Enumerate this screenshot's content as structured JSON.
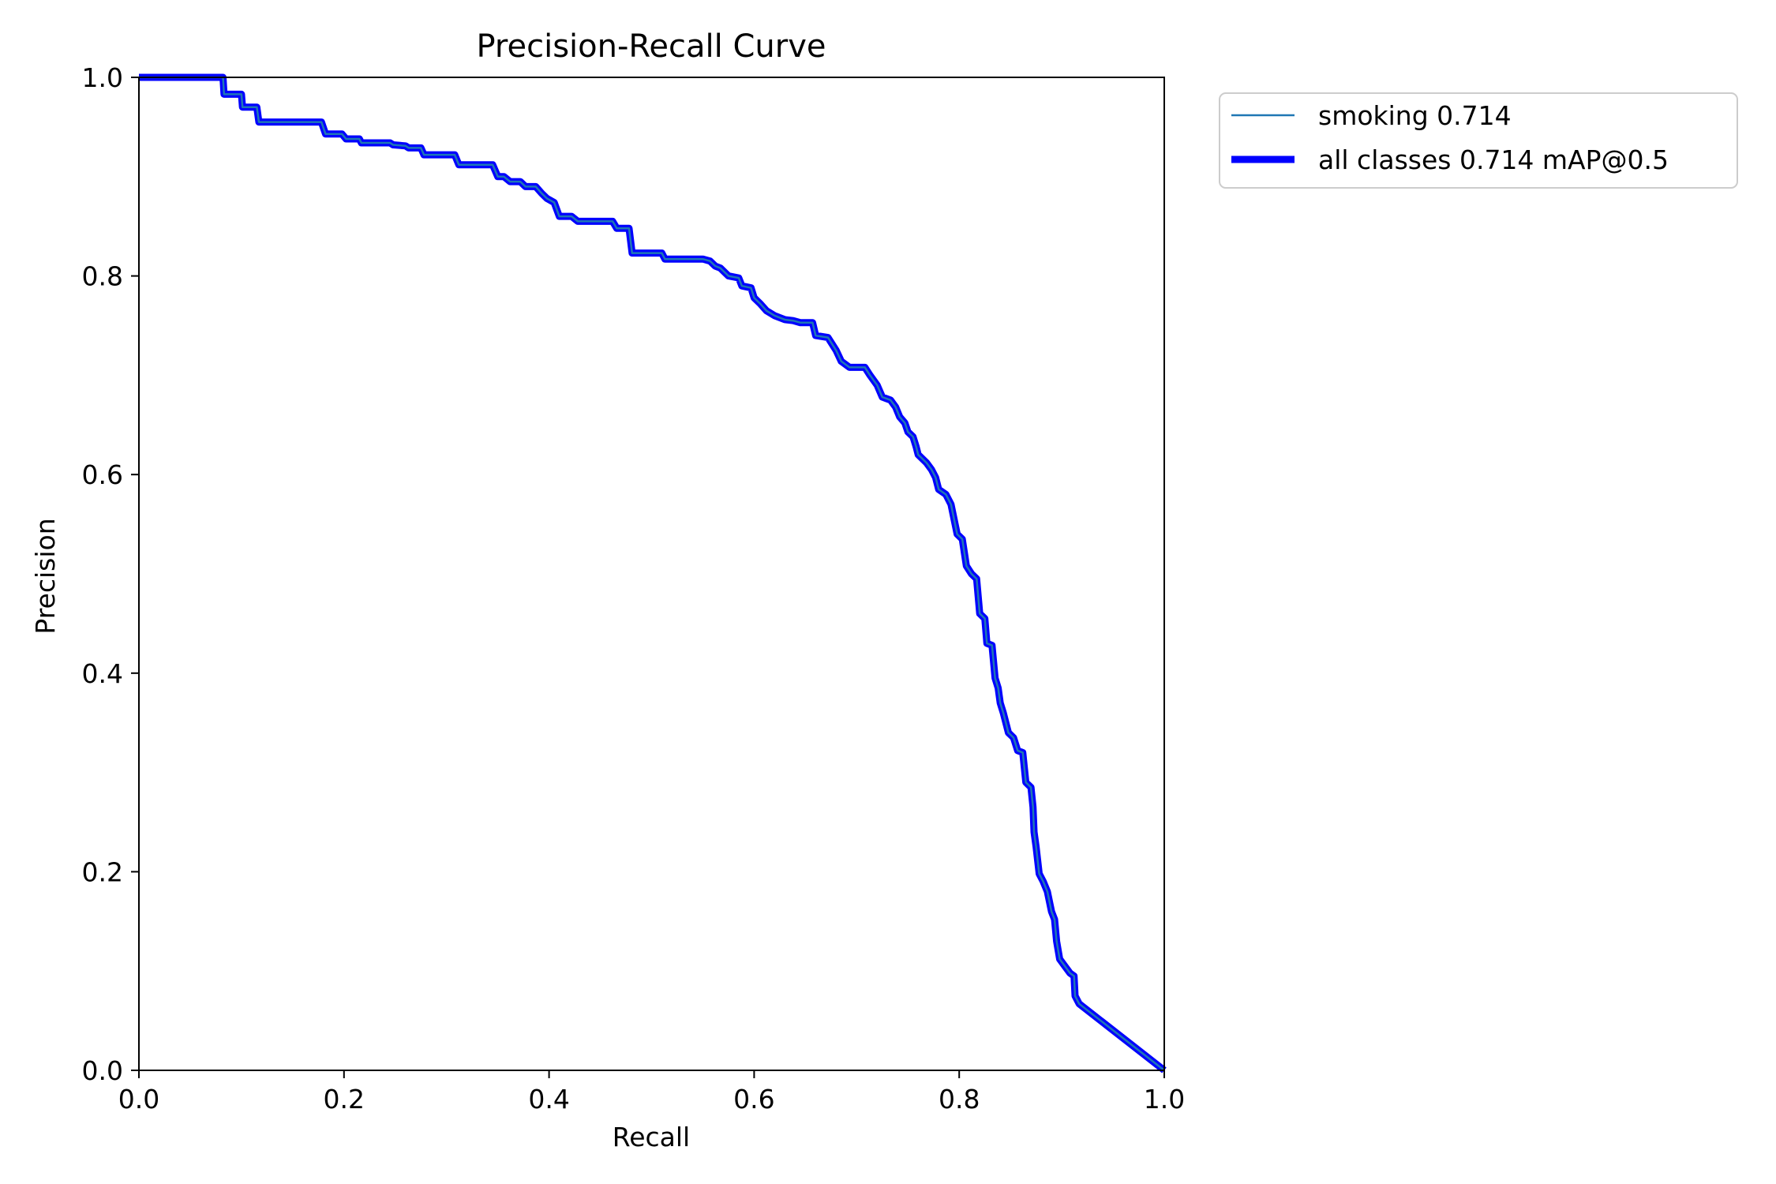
{
  "chart_data": {
    "type": "line",
    "title": "Precision-Recall Curve",
    "xlabel": "Recall",
    "ylabel": "Precision",
    "xlim": [
      0,
      1
    ],
    "ylim": [
      0,
      1
    ],
    "grid": false,
    "legend_placement": "outside-top-right",
    "x_ticks": [
      "0.0",
      "0.2",
      "0.4",
      "0.6",
      "0.8",
      "1.0"
    ],
    "y_ticks": [
      "0.0",
      "0.2",
      "0.4",
      "0.6",
      "0.8",
      "1.0"
    ],
    "series": [
      {
        "name": "smoking 0.714",
        "color": "#1f77b4",
        "points": [
          [
            0.0,
            1.0
          ],
          [
            0.082,
            1.0
          ],
          [
            0.083,
            0.983
          ],
          [
            0.1,
            0.983
          ],
          [
            0.101,
            0.97
          ],
          [
            0.115,
            0.97
          ],
          [
            0.117,
            0.955
          ],
          [
            0.178,
            0.955
          ],
          [
            0.182,
            0.943
          ],
          [
            0.198,
            0.943
          ],
          [
            0.202,
            0.938
          ],
          [
            0.215,
            0.938
          ],
          [
            0.217,
            0.934
          ],
          [
            0.245,
            0.934
          ],
          [
            0.248,
            0.932
          ],
          [
            0.26,
            0.931
          ],
          [
            0.263,
            0.929
          ],
          [
            0.275,
            0.929
          ],
          [
            0.278,
            0.922
          ],
          [
            0.308,
            0.922
          ],
          [
            0.312,
            0.912
          ],
          [
            0.345,
            0.912
          ],
          [
            0.35,
            0.9
          ],
          [
            0.356,
            0.9
          ],
          [
            0.362,
            0.895
          ],
          [
            0.372,
            0.895
          ],
          [
            0.377,
            0.89
          ],
          [
            0.387,
            0.89
          ],
          [
            0.393,
            0.883
          ],
          [
            0.398,
            0.878
          ],
          [
            0.405,
            0.874
          ],
          [
            0.41,
            0.86
          ],
          [
            0.422,
            0.86
          ],
          [
            0.428,
            0.855
          ],
          [
            0.462,
            0.855
          ],
          [
            0.466,
            0.848
          ],
          [
            0.478,
            0.848
          ],
          [
            0.481,
            0.823
          ],
          [
            0.51,
            0.823
          ],
          [
            0.513,
            0.817
          ],
          [
            0.55,
            0.817
          ],
          [
            0.557,
            0.815
          ],
          [
            0.562,
            0.81
          ],
          [
            0.567,
            0.808
          ],
          [
            0.575,
            0.8
          ],
          [
            0.585,
            0.798
          ],
          [
            0.588,
            0.79
          ],
          [
            0.597,
            0.788
          ],
          [
            0.6,
            0.778
          ],
          [
            0.606,
            0.772
          ],
          [
            0.612,
            0.765
          ],
          [
            0.62,
            0.76
          ],
          [
            0.63,
            0.756
          ],
          [
            0.638,
            0.755
          ],
          [
            0.645,
            0.753
          ],
          [
            0.657,
            0.753
          ],
          [
            0.66,
            0.74
          ],
          [
            0.672,
            0.738
          ],
          [
            0.68,
            0.725
          ],
          [
            0.685,
            0.714
          ],
          [
            0.693,
            0.708
          ],
          [
            0.708,
            0.708
          ],
          [
            0.713,
            0.7
          ],
          [
            0.72,
            0.69
          ],
          [
            0.725,
            0.678
          ],
          [
            0.733,
            0.675
          ],
          [
            0.738,
            0.668
          ],
          [
            0.742,
            0.658
          ],
          [
            0.747,
            0.652
          ],
          [
            0.75,
            0.643
          ],
          [
            0.755,
            0.638
          ],
          [
            0.758,
            0.628
          ],
          [
            0.76,
            0.62
          ],
          [
            0.768,
            0.612
          ],
          [
            0.773,
            0.605
          ],
          [
            0.777,
            0.597
          ],
          [
            0.78,
            0.585
          ],
          [
            0.787,
            0.58
          ],
          [
            0.792,
            0.57
          ],
          [
            0.795,
            0.555
          ],
          [
            0.798,
            0.54
          ],
          [
            0.803,
            0.535
          ],
          [
            0.807,
            0.508
          ],
          [
            0.812,
            0.5
          ],
          [
            0.817,
            0.495
          ],
          [
            0.82,
            0.46
          ],
          [
            0.825,
            0.455
          ],
          [
            0.827,
            0.43
          ],
          [
            0.832,
            0.428
          ],
          [
            0.835,
            0.395
          ],
          [
            0.838,
            0.385
          ],
          [
            0.84,
            0.37
          ],
          [
            0.843,
            0.36
          ],
          [
            0.848,
            0.34
          ],
          [
            0.853,
            0.335
          ],
          [
            0.857,
            0.322
          ],
          [
            0.862,
            0.32
          ],
          [
            0.865,
            0.29
          ],
          [
            0.87,
            0.285
          ],
          [
            0.872,
            0.265
          ],
          [
            0.873,
            0.24
          ],
          [
            0.875,
            0.225
          ],
          [
            0.878,
            0.198
          ],
          [
            0.882,
            0.19
          ],
          [
            0.886,
            0.18
          ],
          [
            0.89,
            0.16
          ],
          [
            0.893,
            0.152
          ],
          [
            0.895,
            0.13
          ],
          [
            0.898,
            0.112
          ],
          [
            0.903,
            0.105
          ],
          [
            0.908,
            0.098
          ],
          [
            0.912,
            0.095
          ],
          [
            0.913,
            0.075
          ],
          [
            0.917,
            0.067
          ],
          [
            1.0,
            0.0
          ]
        ]
      },
      {
        "name": "all classes 0.714 mAP@0.5",
        "color": "#0000ff",
        "same_values_as": "smoking 0.714"
      }
    ]
  }
}
